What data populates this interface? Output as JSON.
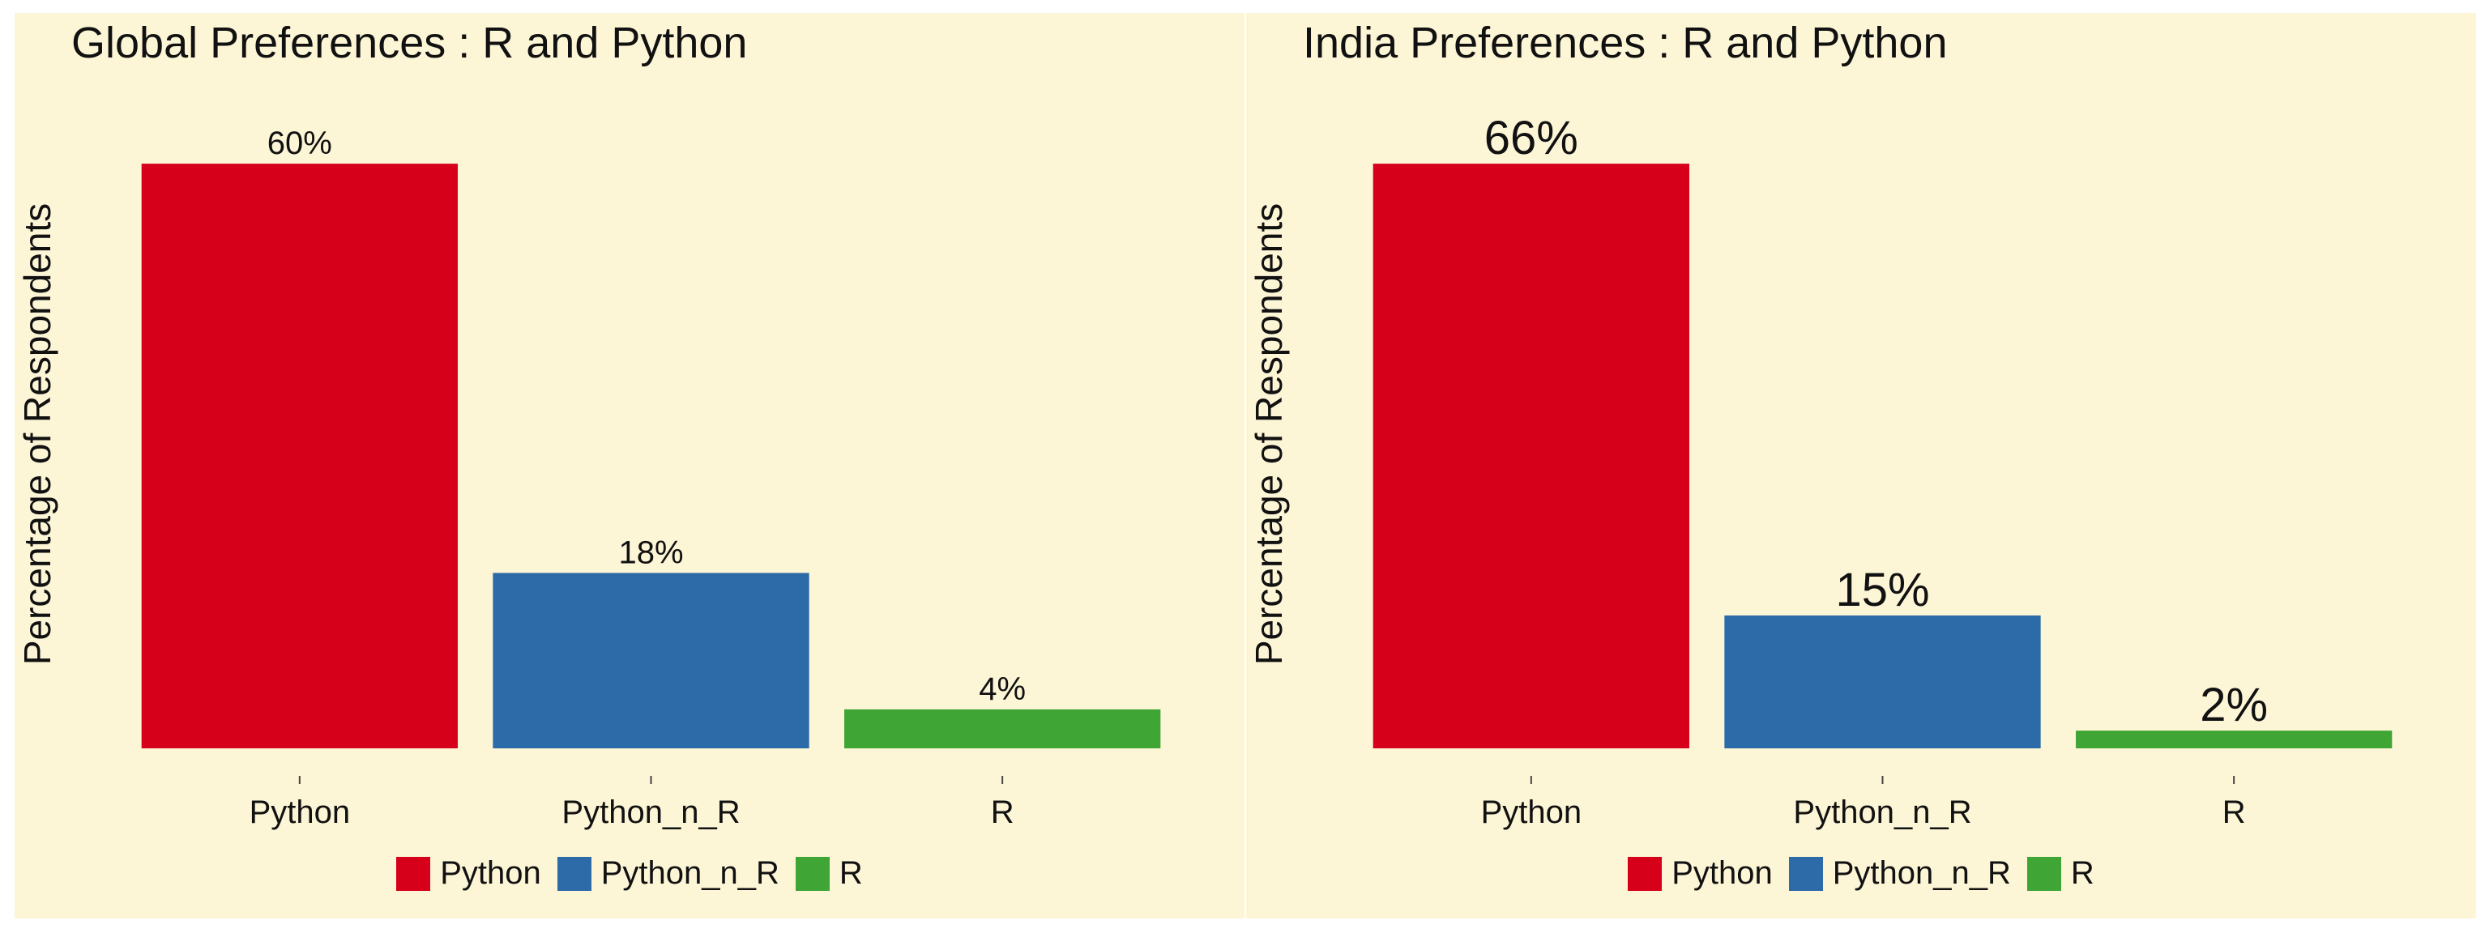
{
  "chart_data": [
    {
      "type": "bar",
      "title": "Global Preferences : R and Python",
      "xlabel": "",
      "ylabel": "Percentage of Respondents",
      "categories": [
        "Python",
        "Python_n_R",
        "R"
      ],
      "values": [
        60,
        18,
        4
      ],
      "value_labels": [
        "60%",
        "18%",
        "4%"
      ],
      "colors": [
        "#d7001a",
        "#2d6aa8",
        "#3fa535"
      ],
      "legend": {
        "position": "bottom",
        "entries": [
          "Python",
          "Python_n_R",
          "R"
        ]
      },
      "ylim": [
        0,
        63
      ],
      "grid": false
    },
    {
      "type": "bar",
      "title": "India Preferences : R and Python",
      "xlabel": "",
      "ylabel": "Percentage of Respondents",
      "categories": [
        "Python",
        "Python_n_R",
        "R"
      ],
      "values": [
        66,
        15,
        2
      ],
      "value_labels": [
        "66%",
        "15%",
        "2%"
      ],
      "colors": [
        "#d7001a",
        "#2d6aa8",
        "#3fa535"
      ],
      "legend": {
        "position": "bottom",
        "entries": [
          "Python",
          "Python_n_R",
          "R"
        ]
      },
      "ylim": [
        0,
        69.3
      ],
      "grid": false
    }
  ]
}
